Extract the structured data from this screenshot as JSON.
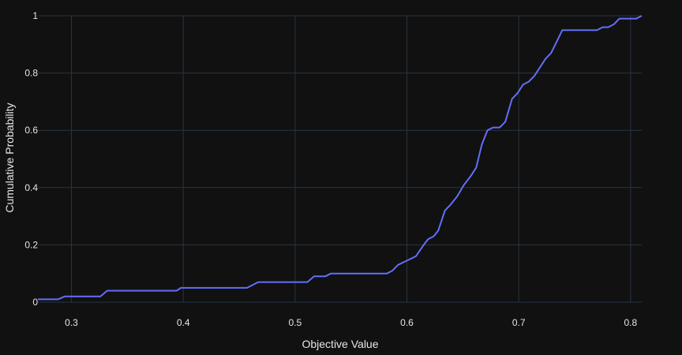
{
  "chart_data": {
    "type": "line",
    "title": "",
    "xlabel": "Objective Value",
    "ylabel": "Cumulative Probability",
    "xlim": [
      0.27,
      0.81
    ],
    "ylim": [
      0,
      1
    ],
    "grid": true,
    "x_ticks": [
      {
        "value": 0.3,
        "label": "0.3"
      },
      {
        "value": 0.4,
        "label": "0.4"
      },
      {
        "value": 0.5,
        "label": "0.5"
      },
      {
        "value": 0.6,
        "label": "0.6"
      },
      {
        "value": 0.7,
        "label": "0.7"
      },
      {
        "value": 0.8,
        "label": "0.8"
      }
    ],
    "y_ticks": [
      {
        "value": 0,
        "label": "0"
      },
      {
        "value": 0.2,
        "label": "0.2"
      },
      {
        "value": 0.4,
        "label": "0.4"
      },
      {
        "value": 0.6,
        "label": "0.6"
      },
      {
        "value": 0.8,
        "label": "0.8"
      },
      {
        "value": 1,
        "label": "1"
      }
    ],
    "series": [
      {
        "color": "#636efa",
        "x": [
          0.27,
          0.288,
          0.294,
          0.305,
          0.326,
          0.332,
          0.35,
          0.394,
          0.398,
          0.417,
          0.457,
          0.467,
          0.486,
          0.511,
          0.517,
          0.527,
          0.532,
          0.551,
          0.582,
          0.587,
          0.592,
          0.6,
          0.608,
          0.615,
          0.619,
          0.624,
          0.628,
          0.634,
          0.639,
          0.645,
          0.651,
          0.657,
          0.662,
          0.667,
          0.672,
          0.677,
          0.683,
          0.688,
          0.694,
          0.699,
          0.704,
          0.709,
          0.714,
          0.719,
          0.724,
          0.729,
          0.734,
          0.739,
          0.744,
          0.77,
          0.775,
          0.78,
          0.785,
          0.79,
          0.795,
          0.805,
          0.81
        ],
        "y": [
          0.01,
          0.01,
          0.02,
          0.02,
          0.02,
          0.04,
          0.04,
          0.04,
          0.05,
          0.05,
          0.05,
          0.07,
          0.07,
          0.07,
          0.09,
          0.09,
          0.1,
          0.1,
          0.1,
          0.11,
          0.13,
          0.145,
          0.16,
          0.2,
          0.22,
          0.23,
          0.25,
          0.32,
          0.34,
          0.37,
          0.41,
          0.44,
          0.47,
          0.55,
          0.6,
          0.61,
          0.61,
          0.63,
          0.71,
          0.73,
          0.76,
          0.77,
          0.79,
          0.82,
          0.85,
          0.87,
          0.91,
          0.95,
          0.95,
          0.95,
          0.96,
          0.96,
          0.97,
          0.99,
          0.99,
          0.99,
          1.0
        ]
      }
    ]
  }
}
